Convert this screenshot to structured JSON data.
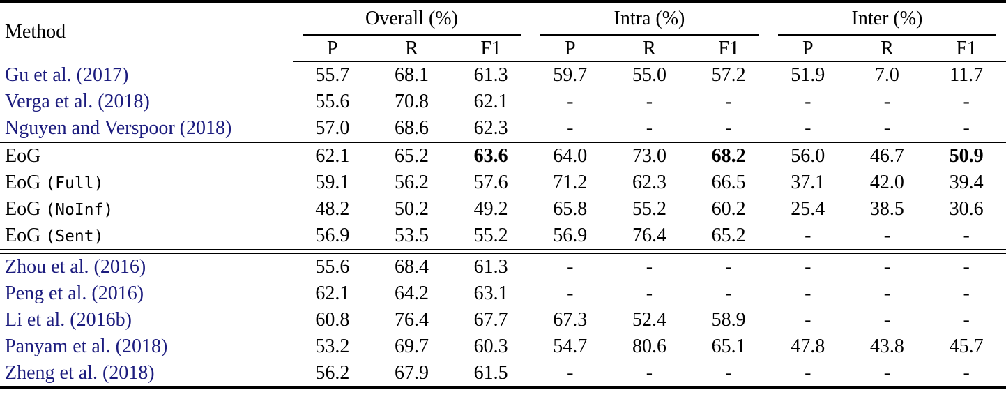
{
  "table": {
    "method_header": "Method",
    "groups": [
      {
        "label": "Overall (%)",
        "sub": [
          "P",
          "R",
          "F1"
        ]
      },
      {
        "label": "Intra (%)",
        "sub": [
          "P",
          "R",
          "F1"
        ]
      },
      {
        "label": "Inter (%)",
        "sub": [
          "P",
          "R",
          "F1"
        ]
      }
    ],
    "sections": [
      {
        "rows": [
          {
            "method": "Gu et al. (2017)",
            "link": true,
            "values": [
              "55.7",
              "68.1",
              "61.3",
              "59.7",
              "55.0",
              "57.2",
              "51.9",
              "7.0",
              "11.7"
            ],
            "bold": []
          },
          {
            "method": "Verga et al. (2018)",
            "link": true,
            "values": [
              "55.6",
              "70.8",
              "62.1",
              "-",
              "-",
              "-",
              "-",
              "-",
              "-"
            ],
            "bold": []
          },
          {
            "method": "Nguyen and Verspoor (2018)",
            "link": true,
            "values": [
              "57.0",
              "68.6",
              "62.3",
              "-",
              "-",
              "-",
              "-",
              "-",
              "-"
            ],
            "bold": []
          }
        ]
      },
      {
        "rows": [
          {
            "method": "EoG",
            "link": false,
            "values": [
              "62.1",
              "65.2",
              "63.6",
              "64.0",
              "73.0",
              "68.2",
              "56.0",
              "46.7",
              "50.9"
            ],
            "bold": [
              2,
              5,
              8
            ]
          },
          {
            "method": "EoG",
            "mono": "Full",
            "link": false,
            "values": [
              "59.1",
              "56.2",
              "57.6",
              "71.2",
              "62.3",
              "66.5",
              "37.1",
              "42.0",
              "39.4"
            ],
            "bold": []
          },
          {
            "method": "EoG",
            "mono": "NoInf",
            "link": false,
            "values": [
              "48.2",
              "50.2",
              "49.2",
              "65.8",
              "55.2",
              "60.2",
              "25.4",
              "38.5",
              "30.6"
            ],
            "bold": []
          },
          {
            "method": "EoG",
            "mono": "Sent",
            "link": false,
            "values": [
              "56.9",
              "53.5",
              "55.2",
              "56.9",
              "76.4",
              "65.2",
              "-",
              "-",
              "-"
            ],
            "bold": []
          }
        ]
      },
      {
        "rows": [
          {
            "method": "Zhou et al. (2016)",
            "link": true,
            "values": [
              "55.6",
              "68.4",
              "61.3",
              "-",
              "-",
              "-",
              "-",
              "-",
              "-"
            ],
            "bold": []
          },
          {
            "method": "Peng et al. (2016)",
            "link": true,
            "values": [
              "62.1",
              "64.2",
              "63.1",
              "-",
              "-",
              "-",
              "-",
              "-",
              "-"
            ],
            "bold": []
          },
          {
            "method": "Li et al. (2016b)",
            "link": true,
            "values": [
              "60.8",
              "76.4",
              "67.7",
              "67.3",
              "52.4",
              "58.9",
              "-",
              "-",
              "-"
            ],
            "bold": []
          },
          {
            "method": "Panyam et al. (2018)",
            "link": true,
            "values": [
              "53.2",
              "69.7",
              "60.3",
              "54.7",
              "80.6",
              "65.1",
              "47.8",
              "43.8",
              "45.7"
            ],
            "bold": []
          },
          {
            "method": "Zheng et al. (2018)",
            "link": true,
            "values": [
              "56.2",
              "67.9",
              "61.5",
              "-",
              "-",
              "-",
              "-",
              "-",
              "-"
            ],
            "bold": []
          }
        ]
      }
    ]
  },
  "colors": {
    "link_color": "#1c1c7e",
    "text_color": "#000000",
    "rule_color": "#000000"
  }
}
